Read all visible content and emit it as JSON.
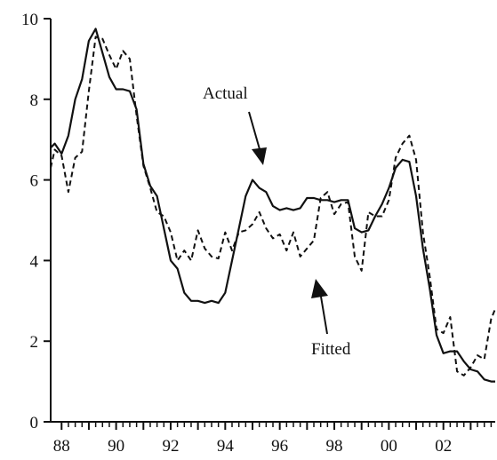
{
  "chart_data": {
    "type": "line",
    "title": "",
    "xlabel": "",
    "ylabel": "",
    "xlim": [
      1987.6,
      2003.9
    ],
    "ylim": [
      0,
      10
    ],
    "grid": false,
    "x_ticks": [
      "88",
      "90",
      "92",
      "94",
      "96",
      "98",
      "00",
      "02"
    ],
    "y_ticks": [
      "0",
      "2",
      "4",
      "6",
      "8",
      "10"
    ],
    "annotations": {
      "actual": "Actual",
      "fitted": "Fitted"
    },
    "series": [
      {
        "name": "Actual",
        "style": "solid",
        "x": [
          1987.6,
          1987.75,
          1988.0,
          1988.25,
          1988.5,
          1988.75,
          1989.0,
          1989.25,
          1989.5,
          1989.75,
          1990.0,
          1990.25,
          1990.5,
          1990.75,
          1991.0,
          1991.25,
          1991.5,
          1991.75,
          1992.0,
          1992.25,
          1992.5,
          1992.75,
          1993.0,
          1993.25,
          1993.5,
          1993.75,
          1994.0,
          1994.25,
          1994.5,
          1994.75,
          1995.0,
          1995.25,
          1995.5,
          1995.75,
          1996.0,
          1996.25,
          1996.5,
          1996.75,
          1997.0,
          1997.25,
          1997.5,
          1997.75,
          1998.0,
          1998.25,
          1998.5,
          1998.75,
          1999.0,
          1999.25,
          1999.5,
          1999.75,
          2000.0,
          2000.25,
          2000.5,
          2000.75,
          2001.0,
          2001.25,
          2001.5,
          2001.75,
          2002.0,
          2002.25,
          2002.5,
          2002.75,
          2003.0,
          2003.25,
          2003.5,
          2003.75,
          2003.9
        ],
        "y": [
          6.8,
          6.9,
          6.65,
          7.1,
          8.0,
          8.5,
          9.45,
          9.75,
          9.15,
          8.55,
          8.25,
          8.25,
          8.2,
          7.75,
          6.4,
          5.85,
          5.6,
          4.8,
          4.0,
          3.8,
          3.2,
          3.0,
          3.0,
          2.95,
          3.0,
          2.95,
          3.2,
          4.0,
          4.8,
          5.6,
          6.0,
          5.8,
          5.7,
          5.35,
          5.25,
          5.3,
          5.25,
          5.3,
          5.55,
          5.55,
          5.5,
          5.5,
          5.45,
          5.5,
          5.5,
          4.8,
          4.7,
          4.75,
          5.1,
          5.4,
          5.8,
          6.3,
          6.5,
          6.45,
          5.6,
          4.3,
          3.3,
          2.15,
          1.7,
          1.75,
          1.75,
          1.5,
          1.3,
          1.25,
          1.05,
          1.0,
          1.0
        ]
      },
      {
        "name": "Fitted",
        "style": "dashed",
        "x": [
          1987.6,
          1987.75,
          1988.0,
          1988.25,
          1988.5,
          1988.75,
          1989.0,
          1989.25,
          1989.5,
          1989.75,
          1990.0,
          1990.25,
          1990.5,
          1990.75,
          1991.0,
          1991.25,
          1991.5,
          1991.75,
          1992.0,
          1992.25,
          1992.5,
          1992.75,
          1993.0,
          1993.25,
          1993.5,
          1993.75,
          1994.0,
          1994.25,
          1994.5,
          1994.75,
          1995.0,
          1995.25,
          1995.5,
          1995.75,
          1996.0,
          1996.25,
          1996.5,
          1996.75,
          1997.0,
          1997.25,
          1997.5,
          1997.75,
          1998.0,
          1998.25,
          1998.5,
          1998.75,
          1999.0,
          1999.25,
          1999.5,
          1999.75,
          2000.0,
          2000.25,
          2000.5,
          2000.75,
          2001.0,
          2001.25,
          2001.5,
          2001.75,
          2002.0,
          2002.25,
          2002.5,
          2002.75,
          2003.0,
          2003.25,
          2003.5,
          2003.75,
          2003.9
        ],
        "y": [
          6.3,
          6.75,
          6.6,
          5.7,
          6.55,
          6.7,
          8.2,
          9.55,
          9.5,
          9.1,
          8.75,
          9.2,
          9.0,
          7.6,
          6.35,
          5.8,
          5.2,
          5.1,
          4.7,
          4.0,
          4.25,
          4.0,
          4.75,
          4.3,
          4.1,
          4.05,
          4.7,
          4.25,
          4.7,
          4.75,
          4.9,
          5.2,
          4.8,
          4.55,
          4.65,
          4.25,
          4.7,
          4.1,
          4.3,
          4.5,
          5.55,
          5.7,
          5.15,
          5.4,
          5.45,
          4.1,
          3.75,
          5.2,
          5.1,
          5.1,
          5.5,
          6.55,
          6.9,
          7.1,
          6.5,
          4.7,
          3.6,
          2.3,
          2.2,
          2.6,
          1.25,
          1.15,
          1.35,
          1.65,
          1.55,
          2.55,
          2.8
        ]
      }
    ]
  }
}
